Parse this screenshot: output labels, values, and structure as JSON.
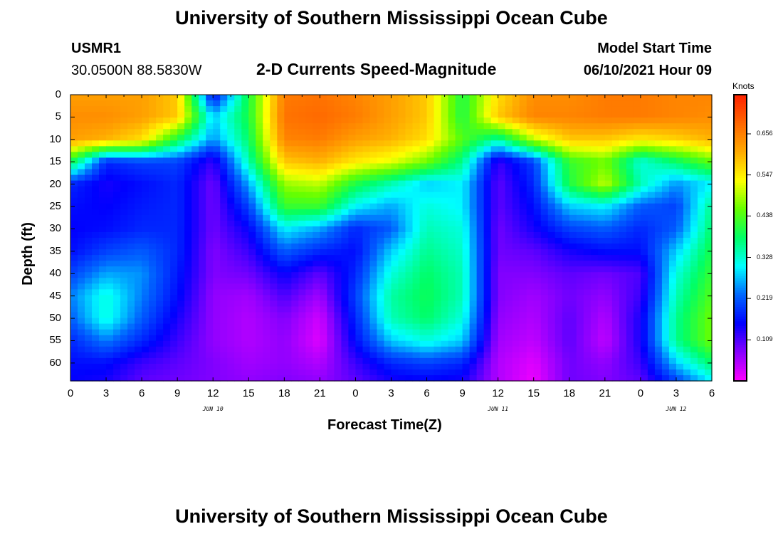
{
  "page": {
    "title": "University of Southern Mississippi Ocean Cube",
    "footer_title": "University of Southern Mississippi Ocean Cube"
  },
  "header": {
    "station": "USMR1",
    "coords": "30.0500N  88.5830W",
    "subtitle": "2-D Currents Speed-Magnitude",
    "model_start_label": "Model Start Time",
    "model_start_value": "06/10/2021 Hour 09"
  },
  "chart_data": {
    "type": "heatmap",
    "title": "2-D Currents Speed-Magnitude",
    "xlabel": "Forecast Time(Z)",
    "ylabel": "Depth (ft)",
    "x_ticks": [
      "0",
      "3",
      "6",
      "9",
      "12",
      "15",
      "18",
      "21",
      "0",
      "3",
      "6",
      "9",
      "12",
      "15",
      "18",
      "21",
      "0",
      "3",
      "6"
    ],
    "x_dates": [
      "JUN 10",
      "JUN 11",
      "JUN 12"
    ],
    "y_ticks": [
      "0",
      "5",
      "10",
      "15",
      "20",
      "25",
      "30",
      "35",
      "40",
      "45",
      "50",
      "55",
      "60"
    ],
    "ylim": [
      0,
      64
    ],
    "colorbar": {
      "units": "Knots",
      "ticks": [
        "0.656",
        "0.547",
        "0.438",
        "0.328",
        "0.219",
        "0.109"
      ],
      "range": [
        0,
        0.76
      ],
      "colors": [
        "#ff00ff",
        "#8800ff",
        "#0000ff",
        "#0066ff",
        "#00ffff",
        "#00ff66",
        "#66ff00",
        "#ffff00",
        "#ffaa00",
        "#ff6600",
        "#ff2200"
      ]
    },
    "field": {
      "hours": [
        0,
        3,
        6,
        9,
        12,
        15,
        18,
        21,
        24,
        27,
        30,
        33,
        36,
        39,
        42,
        45,
        48,
        51,
        54
      ],
      "depths": [
        0,
        5,
        10,
        15,
        20,
        25,
        30,
        35,
        40,
        45,
        50,
        55,
        60,
        64
      ],
      "speeds": [
        [
          0.62,
          0.62,
          0.62,
          0.58,
          0.15,
          0.4,
          0.66,
          0.67,
          0.65,
          0.62,
          0.58,
          0.4,
          0.56,
          0.64,
          0.64,
          0.66,
          0.66,
          0.65,
          0.65
        ],
        [
          0.64,
          0.64,
          0.62,
          0.58,
          0.28,
          0.4,
          0.67,
          0.68,
          0.66,
          0.62,
          0.58,
          0.4,
          0.58,
          0.65,
          0.65,
          0.66,
          0.66,
          0.65,
          0.64
        ],
        [
          0.62,
          0.6,
          0.56,
          0.4,
          0.25,
          0.38,
          0.65,
          0.66,
          0.62,
          0.6,
          0.56,
          0.44,
          0.35,
          0.5,
          0.58,
          0.58,
          0.55,
          0.57,
          0.6
        ],
        [
          0.4,
          0.18,
          0.2,
          0.2,
          0.12,
          0.34,
          0.58,
          0.6,
          0.55,
          0.52,
          0.46,
          0.36,
          0.12,
          0.2,
          0.42,
          0.46,
          0.32,
          0.38,
          0.45
        ],
        [
          0.18,
          0.14,
          0.16,
          0.18,
          0.09,
          0.26,
          0.48,
          0.5,
          0.4,
          0.34,
          0.28,
          0.3,
          0.1,
          0.18,
          0.4,
          0.5,
          0.34,
          0.25,
          0.3
        ],
        [
          0.16,
          0.15,
          0.17,
          0.18,
          0.09,
          0.2,
          0.42,
          0.42,
          0.3,
          0.26,
          0.32,
          0.3,
          0.1,
          0.16,
          0.28,
          0.3,
          0.22,
          0.2,
          0.36
        ],
        [
          0.15,
          0.16,
          0.18,
          0.18,
          0.09,
          0.15,
          0.3,
          0.26,
          0.18,
          0.22,
          0.34,
          0.32,
          0.09,
          0.14,
          0.2,
          0.22,
          0.18,
          0.22,
          0.38
        ],
        [
          0.16,
          0.2,
          0.22,
          0.18,
          0.08,
          0.12,
          0.22,
          0.18,
          0.16,
          0.28,
          0.36,
          0.33,
          0.09,
          0.1,
          0.14,
          0.16,
          0.16,
          0.28,
          0.4
        ],
        [
          0.2,
          0.26,
          0.25,
          0.17,
          0.08,
          0.09,
          0.15,
          0.1,
          0.18,
          0.32,
          0.38,
          0.34,
          0.08,
          0.08,
          0.1,
          0.09,
          0.11,
          0.32,
          0.42
        ],
        [
          0.24,
          0.32,
          0.24,
          0.16,
          0.07,
          0.06,
          0.11,
          0.06,
          0.2,
          0.35,
          0.39,
          0.34,
          0.08,
          0.06,
          0.09,
          0.07,
          0.12,
          0.34,
          0.44
        ],
        [
          0.22,
          0.32,
          0.22,
          0.14,
          0.07,
          0.05,
          0.08,
          0.03,
          0.18,
          0.34,
          0.38,
          0.32,
          0.07,
          0.05,
          0.1,
          0.05,
          0.14,
          0.36,
          0.46
        ],
        [
          0.18,
          0.24,
          0.18,
          0.12,
          0.07,
          0.05,
          0.07,
          0.02,
          0.16,
          0.28,
          0.32,
          0.28,
          0.06,
          0.04,
          0.1,
          0.04,
          0.14,
          0.36,
          0.46
        ],
        [
          0.16,
          0.16,
          0.12,
          0.1,
          0.08,
          0.06,
          0.07,
          0.05,
          0.12,
          0.18,
          0.2,
          0.18,
          0.05,
          0.02,
          0.09,
          0.07,
          0.12,
          0.28,
          0.38
        ],
        [
          0.15,
          0.14,
          0.1,
          0.09,
          0.08,
          0.07,
          0.08,
          0.07,
          0.1,
          0.14,
          0.15,
          0.14,
          0.05,
          0.01,
          0.09,
          0.08,
          0.1,
          0.2,
          0.3
        ]
      ]
    }
  }
}
